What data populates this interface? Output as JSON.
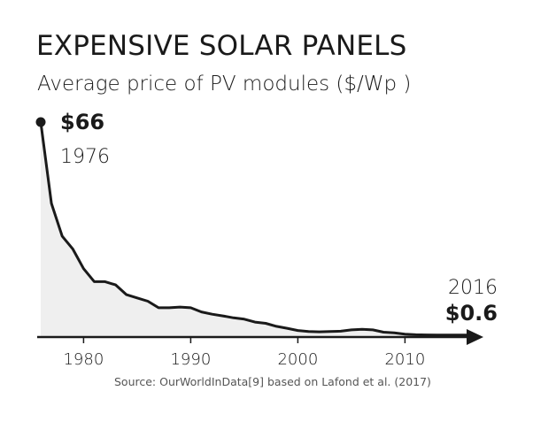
{
  "header": {
    "title": "EXPENSIVE SOLAR PANELS",
    "subtitle": "Average price of PV modules ($/Wp )"
  },
  "source": "Source: OurWorldInData[9] based on Lafond et al. (2017)",
  "colors": {
    "line": "#1a1a1a",
    "area": "#efefef",
    "text": "#1a1a1a",
    "source": "#555555"
  },
  "chart_data": {
    "type": "area",
    "title": "EXPENSIVE SOLAR PANELS",
    "subtitle": "Average price of PV modules ($/Wp )",
    "xlabel": "",
    "ylabel": "",
    "x_ticks": [
      1980,
      1990,
      2000,
      2010
    ],
    "xlim": [
      1976,
      2016
    ],
    "ylim": [
      0,
      66
    ],
    "grid": false,
    "legend": "none",
    "x": [
      1976,
      1977,
      1978,
      1979,
      1980,
      1981,
      1982,
      1983,
      1984,
      1985,
      1986,
      1987,
      1988,
      1989,
      1990,
      1991,
      1992,
      1993,
      1994,
      1995,
      1996,
      1997,
      1998,
      1999,
      2000,
      2001,
      2002,
      2003,
      2004,
      2005,
      2006,
      2007,
      2008,
      2009,
      2010,
      2011,
      2012,
      2013,
      2014,
      2015,
      2016
    ],
    "y": [
      66,
      41,
      31,
      27,
      21,
      17,
      17,
      16,
      13,
      12,
      11,
      9,
      9,
      9.2,
      9,
      7.7,
      7,
      6.5,
      5.9,
      5.5,
      4.6,
      4.2,
      3.3,
      2.7,
      2,
      1.7,
      1.6,
      1.7,
      1.8,
      2.2,
      2.4,
      2.2,
      1.5,
      1.3,
      0.9,
      0.7,
      0.65,
      0.62,
      0.6,
      0.6,
      0.6
    ],
    "annotations": {
      "start": {
        "value": "$66",
        "year": "1976"
      },
      "end": {
        "value": "$0.6",
        "year": "2016"
      }
    }
  }
}
